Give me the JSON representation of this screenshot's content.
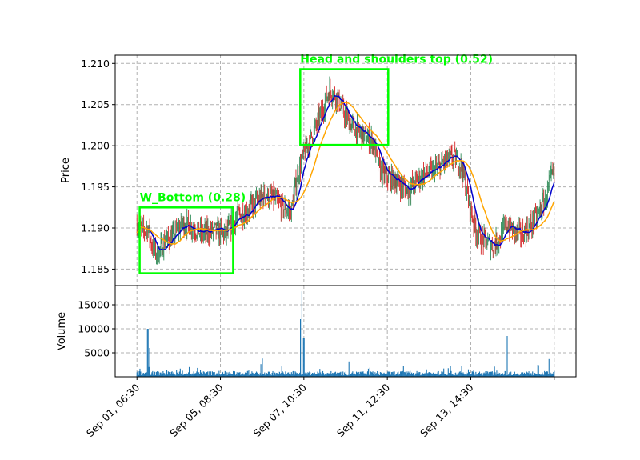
{
  "chart_data": {
    "type": "candlestick",
    "price_panel": {
      "ylabel": "Price",
      "ylim": [
        1.183,
        1.211
      ],
      "yticks": [
        1.185,
        1.19,
        1.195,
        1.2,
        1.205,
        1.21
      ],
      "ytick_labels": [
        "1.185",
        "1.190",
        "1.195",
        "1.200",
        "1.205",
        "1.210"
      ],
      "series": [
        {
          "name": "",
          "color": "#0000cc",
          "style": "moving-average-fast"
        },
        {
          "name": "",
          "color": "#ffa500",
          "style": "moving-average-slow"
        }
      ],
      "up_color": "#2e8b57",
      "down_color": "#d62728",
      "approx_close_path": [
        {
          "d": 0.0,
          "p": 1.1905
        },
        {
          "d": 0.3,
          "p": 1.1895
        },
        {
          "d": 0.6,
          "p": 1.19
        },
        {
          "d": 0.8,
          "p": 1.188
        },
        {
          "d": 1.1,
          "p": 1.1868
        },
        {
          "d": 1.5,
          "p": 1.1882
        },
        {
          "d": 2.0,
          "p": 1.189
        },
        {
          "d": 2.5,
          "p": 1.1905
        },
        {
          "d": 3.0,
          "p": 1.1902
        },
        {
          "d": 3.6,
          "p": 1.1893
        },
        {
          "d": 4.3,
          "p": 1.1897
        },
        {
          "d": 4.9,
          "p": 1.1892
        },
        {
          "d": 5.2,
          "p": 1.1905
        },
        {
          "d": 5.6,
          "p": 1.1915
        },
        {
          "d": 6.0,
          "p": 1.192
        },
        {
          "d": 6.5,
          "p": 1.193
        },
        {
          "d": 7.0,
          "p": 1.194
        },
        {
          "d": 7.6,
          "p": 1.1935
        },
        {
          "d": 8.0,
          "p": 1.1925
        },
        {
          "d": 8.5,
          "p": 1.192
        },
        {
          "d": 8.8,
          "p": 1.196
        },
        {
          "d": 9.2,
          "p": 1.199
        },
        {
          "d": 9.6,
          "p": 1.201
        },
        {
          "d": 10.0,
          "p": 1.203
        },
        {
          "d": 10.4,
          "p": 1.2055
        },
        {
          "d": 10.6,
          "p": 1.2068
        },
        {
          "d": 11.0,
          "p": 1.206
        },
        {
          "d": 11.4,
          "p": 1.204
        },
        {
          "d": 11.8,
          "p": 1.2025
        },
        {
          "d": 12.2,
          "p": 1.2018
        },
        {
          "d": 12.6,
          "p": 1.201
        },
        {
          "d": 13.0,
          "p": 1.2005
        },
        {
          "d": 13.4,
          "p": 1.197
        },
        {
          "d": 13.8,
          "p": 1.1962
        },
        {
          "d": 14.3,
          "p": 1.1958
        },
        {
          "d": 14.9,
          "p": 1.1945
        },
        {
          "d": 15.3,
          "p": 1.1955
        },
        {
          "d": 15.8,
          "p": 1.1965
        },
        {
          "d": 16.4,
          "p": 1.197
        },
        {
          "d": 17.0,
          "p": 1.1982
        },
        {
          "d": 17.5,
          "p": 1.1985
        },
        {
          "d": 17.9,
          "p": 1.1975
        },
        {
          "d": 18.3,
          "p": 1.193
        },
        {
          "d": 18.7,
          "p": 1.1895
        },
        {
          "d": 19.1,
          "p": 1.1885
        },
        {
          "d": 19.6,
          "p": 1.1878
        },
        {
          "d": 20.0,
          "p": 1.1888
        },
        {
          "d": 20.4,
          "p": 1.1905
        },
        {
          "d": 20.8,
          "p": 1.1895
        },
        {
          "d": 21.2,
          "p": 1.1892
        },
        {
          "d": 21.6,
          "p": 1.19
        },
        {
          "d": 22.0,
          "p": 1.1912
        },
        {
          "d": 22.5,
          "p": 1.1935
        },
        {
          "d": 22.9,
          "p": 1.1965
        },
        {
          "d": 23.0,
          "p": 1.1962
        }
      ]
    },
    "volume_panel": {
      "ylabel": "Volume",
      "ylim": [
        0,
        19000
      ],
      "yticks": [
        5000,
        10000,
        15000
      ],
      "ytick_labels": [
        "5000",
        "10000",
        "15000"
      ],
      "color": "#1f77b4",
      "spikes": [
        {
          "d": 0.6,
          "v": 10000
        },
        {
          "d": 0.7,
          "v": 6000
        },
        {
          "d": 6.9,
          "v": 3800
        },
        {
          "d": 9.0,
          "v": 12000
        },
        {
          "d": 9.1,
          "v": 17800
        },
        {
          "d": 9.2,
          "v": 8000
        },
        {
          "d": 11.7,
          "v": 3200
        },
        {
          "d": 20.4,
          "v": 8500
        },
        {
          "d": 22.7,
          "v": 3700
        }
      ]
    },
    "xlim": [
      -1.2,
      24.2
    ],
    "xticks": [
      0,
      4.6,
      9.2,
      13.8,
      18.4,
      23
    ],
    "xtick_labels": [
      "Sep 01, 06:30",
      "Sep 05, 08:30",
      "Sep 07, 10:30",
      "Sep 11, 12:30",
      "Sep 13, 14:30",
      ""
    ],
    "grid": true,
    "annotations": [
      {
        "label": "W_Bottom (0.28)",
        "x0": 0.15,
        "x1": 5.3,
        "y0": 1.1845,
        "y1": 1.1925,
        "color": "#00ff00"
      },
      {
        "label": "Head and shoulders top (0.52)",
        "x0": 9.0,
        "x1": 13.85,
        "y0": 1.2001,
        "y1": 1.2093,
        "color": "#00ff00"
      }
    ]
  }
}
